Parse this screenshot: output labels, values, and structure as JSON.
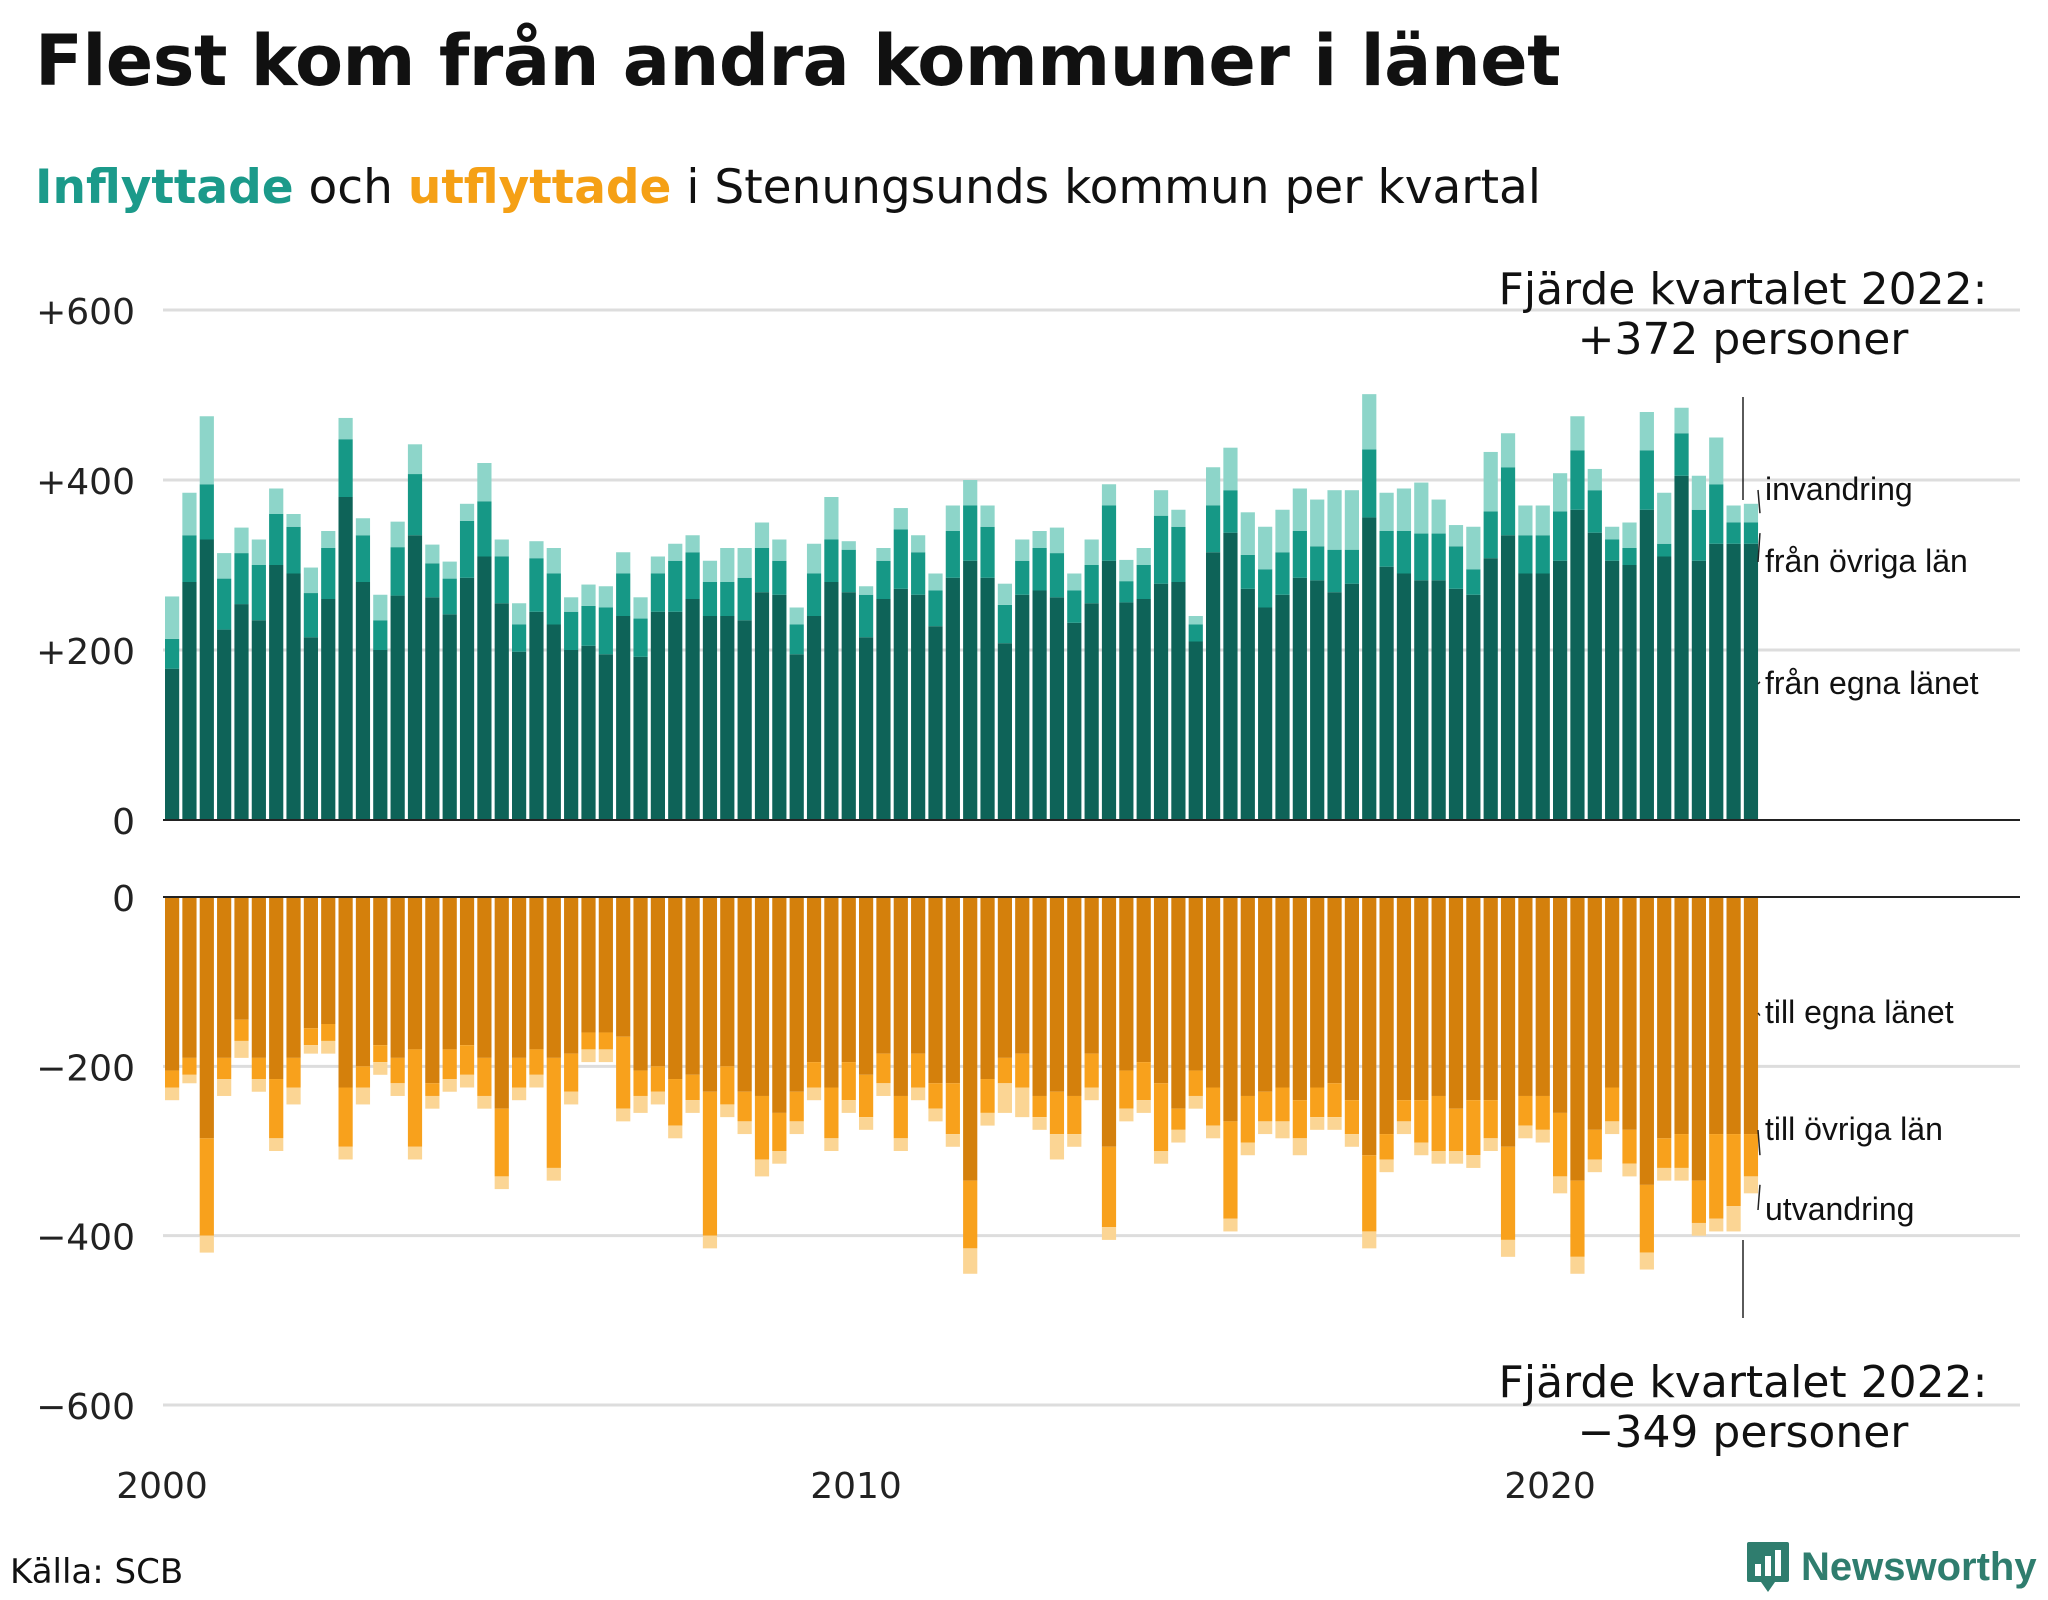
{
  "title": "Flest kom från andra kommuner i länet",
  "subtitle": {
    "inflyttade": "Inflyttade",
    "och": " och ",
    "utflyttade": "utflyttade",
    "rest": " i Stenungsunds  kommun per kvartal"
  },
  "source": "Källa: SCB",
  "brand": {
    "name": "Newsworthy",
    "icon": "newsworthy-logo-icon"
  },
  "colors": {
    "in_own": "#0e6358",
    "in_other": "#169886",
    "in_immigration": "#8dd5c9",
    "out_own": "#d4800c",
    "out_other": "#f8a11c",
    "out_emigration": "#fbd594",
    "grid": "#dddddd",
    "axis": "#222222"
  },
  "chart_data": {
    "type": "bar",
    "stacked": true,
    "x_start": "2000 Q1",
    "x_ticks": [
      "2000",
      "2010",
      "2020"
    ],
    "y_ticks_top": [
      "+600",
      "+400",
      "+200",
      "0"
    ],
    "y_ticks_bottom": [
      "0",
      "−200",
      "−400",
      "−600"
    ],
    "ylim_top": [
      0,
      600
    ],
    "ylim_bottom": [
      -600,
      0
    ],
    "grid": true,
    "inflow_labels": [
      "invandring",
      "från övriga län",
      "från egna länet"
    ],
    "outflow_labels": [
      "till egna länet",
      "till övriga län",
      "utvandring"
    ],
    "annotation_top": {
      "line1": "Fjärde kvartalet 2022:",
      "line2": "+372 personer"
    },
    "annotation_bottom": {
      "line1": "Fjärde kvartalet 2022:",
      "line2": "−349 personer"
    },
    "inflow": {
      "fran_egna_lanet": [
        178,
        280,
        330,
        224,
        254,
        235,
        300,
        290,
        215,
        260,
        380,
        280,
        200,
        264,
        335,
        262,
        242,
        285,
        310,
        255,
        198,
        245,
        230,
        200,
        205,
        195,
        240,
        192,
        245,
        245,
        260,
        240,
        240,
        235,
        268,
        265,
        195,
        240,
        280,
        268,
        215,
        260,
        272,
        265,
        228,
        285,
        305,
        285,
        208,
        265,
        270,
        262,
        232,
        255,
        305,
        256,
        260,
        278,
        280,
        210,
        315,
        338,
        272,
        250,
        265,
        285,
        282,
        268,
        278,
        356,
        298,
        290,
        282,
        282,
        272,
        265,
        308,
        335,
        290,
        290,
        305,
        365,
        338,
        305,
        300,
        365,
        310,
        405,
        305,
        325,
        325,
        325
      ],
      "fran_ovriga_lan": [
        35,
        55,
        65,
        60,
        60,
        65,
        60,
        55,
        52,
        60,
        68,
        55,
        35,
        57,
        72,
        40,
        42,
        67,
        65,
        55,
        32,
        63,
        60,
        45,
        47,
        55,
        50,
        45,
        45,
        60,
        55,
        40,
        40,
        50,
        52,
        40,
        35,
        50,
        50,
        50,
        50,
        45,
        70,
        50,
        42,
        55,
        65,
        60,
        45,
        40,
        50,
        52,
        38,
        45,
        65,
        25,
        40,
        80,
        65,
        20,
        55,
        50,
        40,
        45,
        50,
        55,
        40,
        50,
        40,
        80,
        42,
        50,
        55,
        55,
        50,
        30,
        55,
        80,
        45,
        45,
        58,
        70,
        50,
        25,
        20,
        70,
        15,
        50,
        60,
        70,
        25,
        25
      ],
      "invandring": [
        50,
        50,
        80,
        30,
        30,
        30,
        30,
        15,
        30,
        20,
        25,
        20,
        30,
        30,
        35,
        22,
        20,
        20,
        45,
        20,
        25,
        20,
        30,
        17,
        25,
        25,
        25,
        25,
        20,
        20,
        20,
        25,
        40,
        35,
        30,
        25,
        20,
        35,
        50,
        10,
        10,
        15,
        25,
        20,
        20,
        30,
        30,
        25,
        25,
        25,
        20,
        30,
        20,
        30,
        25,
        25,
        20,
        30,
        20,
        10,
        45,
        50,
        50,
        50,
        50,
        50,
        55,
        70,
        70,
        65,
        45,
        50,
        60,
        40,
        25,
        50,
        70,
        40,
        35,
        35,
        45,
        40,
        25,
        15,
        30,
        45,
        60,
        30,
        40,
        55,
        20,
        22
      ]
    },
    "outflow": {
      "till_egna_lanet": [
        205,
        190,
        285,
        190,
        145,
        190,
        215,
        190,
        155,
        150,
        225,
        200,
        175,
        190,
        180,
        220,
        180,
        175,
        190,
        250,
        190,
        180,
        190,
        185,
        160,
        160,
        165,
        205,
        200,
        215,
        210,
        230,
        200,
        230,
        235,
        255,
        230,
        195,
        225,
        195,
        210,
        185,
        235,
        185,
        220,
        220,
        335,
        215,
        190,
        185,
        235,
        230,
        235,
        185,
        295,
        205,
        195,
        220,
        250,
        205,
        225,
        265,
        235,
        230,
        225,
        240,
        225,
        220,
        240,
        305,
        280,
        240,
        240,
        235,
        250,
        240,
        240,
        295,
        235,
        235,
        255,
        335,
        275,
        225,
        275,
        340,
        285,
        280,
        335,
        280,
        280,
        280
      ],
      "till_ovriga_lan": [
        20,
        20,
        115,
        25,
        25,
        25,
        70,
        35,
        20,
        20,
        70,
        25,
        20,
        30,
        115,
        15,
        35,
        35,
        45,
        80,
        35,
        30,
        130,
        45,
        20,
        20,
        85,
        30,
        30,
        55,
        30,
        170,
        45,
        35,
        75,
        45,
        35,
        30,
        60,
        45,
        50,
        35,
        50,
        40,
        30,
        60,
        80,
        40,
        30,
        40,
        25,
        50,
        45,
        40,
        95,
        45,
        45,
        80,
        25,
        30,
        45,
        115,
        55,
        35,
        40,
        45,
        35,
        40,
        40,
        90,
        30,
        25,
        50,
        65,
        50,
        65,
        45,
        110,
        35,
        40,
        75,
        90,
        35,
        40,
        40,
        80,
        35,
        40,
        50,
        100,
        85,
        50
      ],
      "utvandring": [
        15,
        10,
        20,
        20,
        20,
        15,
        15,
        20,
        10,
        15,
        15,
        20,
        15,
        15,
        15,
        15,
        15,
        15,
        15,
        15,
        15,
        15,
        15,
        15,
        15,
        15,
        15,
        20,
        15,
        15,
        15,
        15,
        15,
        15,
        20,
        15,
        15,
        15,
        15,
        15,
        15,
        15,
        15,
        15,
        15,
        15,
        30,
        15,
        35,
        35,
        15,
        30,
        15,
        15,
        15,
        15,
        15,
        15,
        15,
        15,
        15,
        15,
        15,
        15,
        20,
        20,
        15,
        15,
        15,
        20,
        15,
        15,
        15,
        15,
        15,
        15,
        15,
        20,
        15,
        15,
        20,
        20,
        15,
        15,
        15,
        20,
        15,
        15,
        15,
        15,
        30,
        20
      ]
    }
  }
}
